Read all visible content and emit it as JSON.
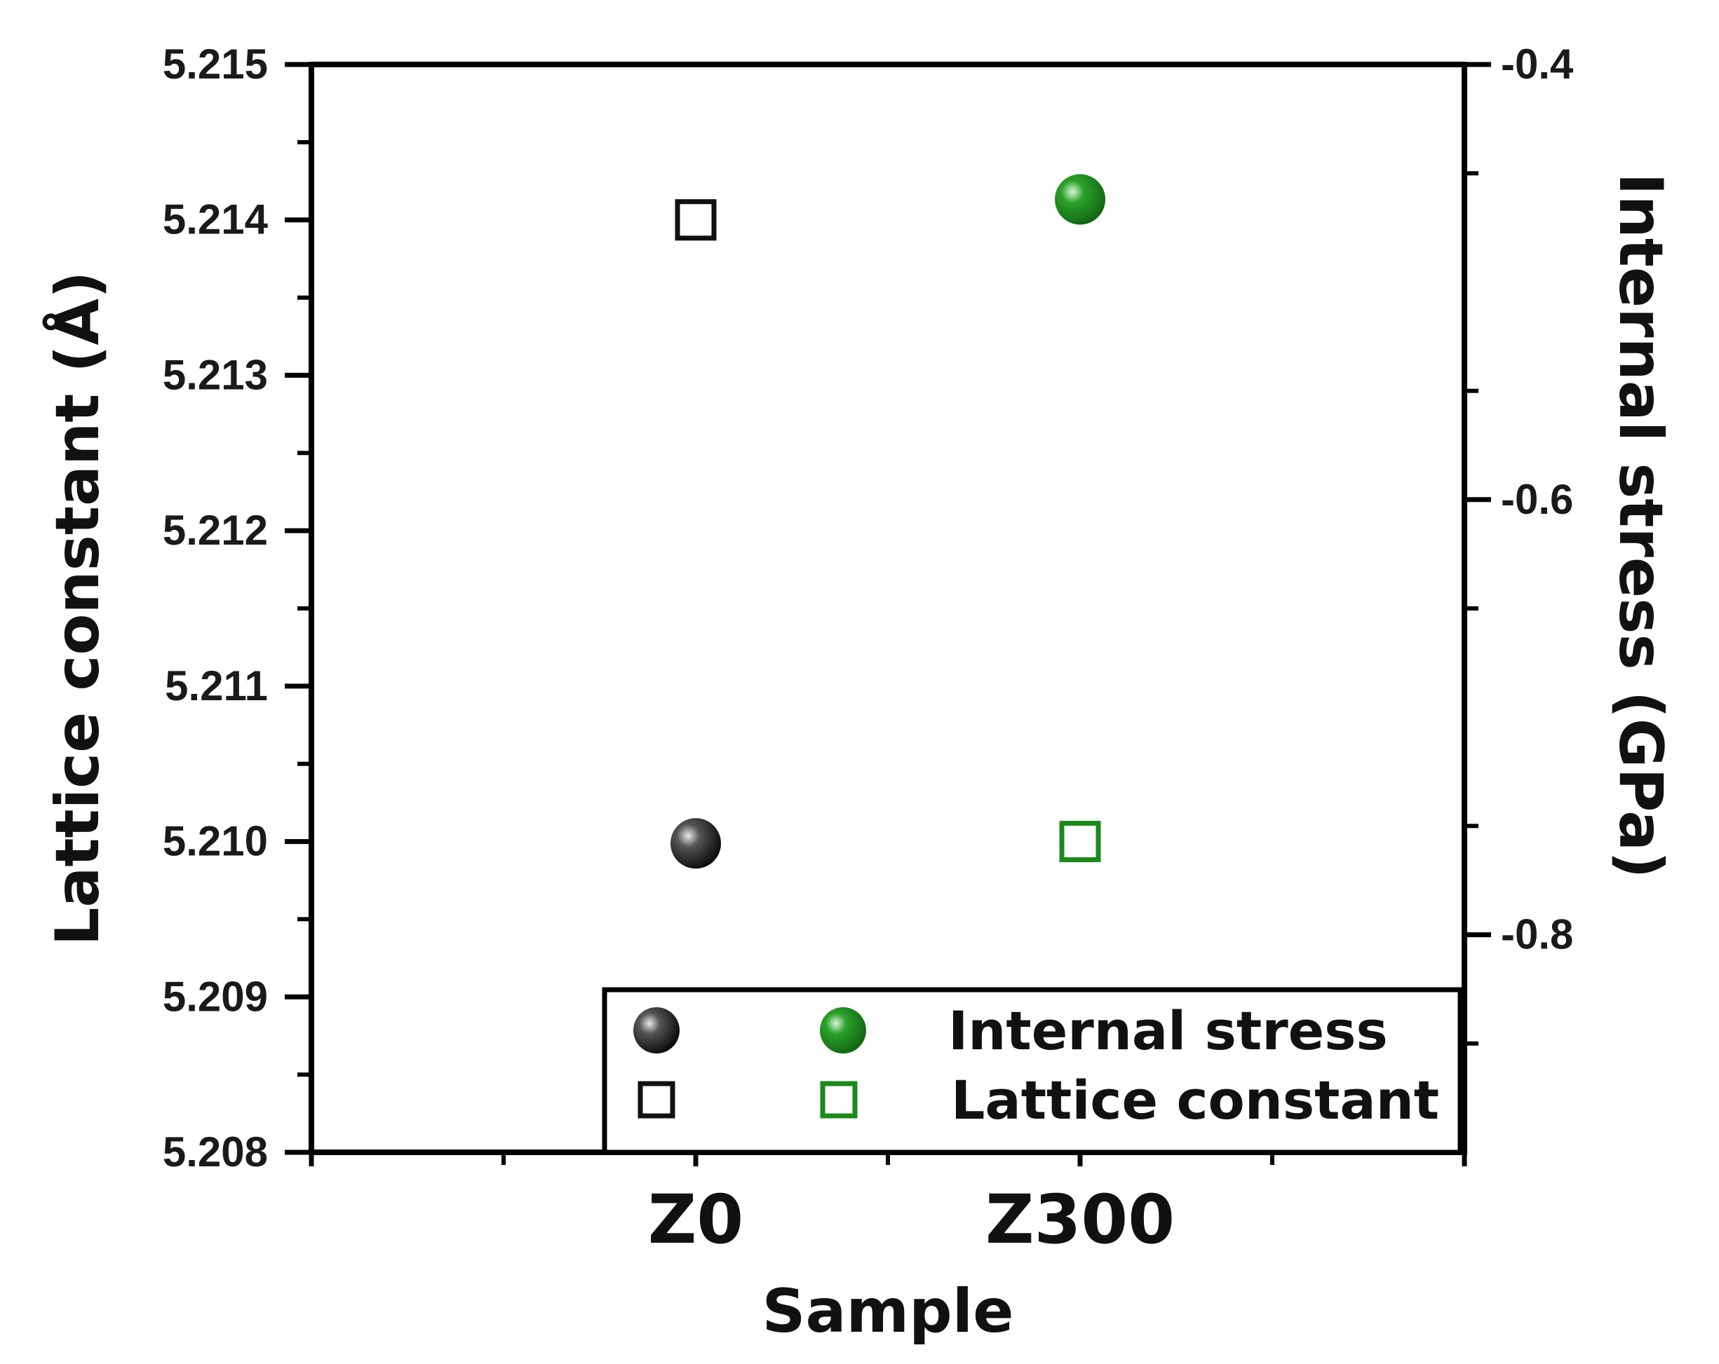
{
  "chart_data": {
    "type": "scatter",
    "categories": [
      "Z0",
      "Z300"
    ],
    "xlabel": "Sample",
    "y_left": {
      "label": "Lattice constant (Å)",
      "ylim": [
        5.208,
        5.215
      ],
      "ticks": [
        "5.208",
        "5.209",
        "5.210",
        "5.211",
        "5.212",
        "5.213",
        "5.214",
        "5.215"
      ]
    },
    "y_right": {
      "label": "Internal stress (GPa)",
      "ylim": [
        -0.9,
        -0.4
      ],
      "ticks": [
        "-0.8",
        "-0.6",
        "-0.4"
      ]
    },
    "series": [
      {
        "name": "Internal stress",
        "axis": "right",
        "marker": "filled-sphere",
        "colors": [
          "#111111",
          "#1a8a1a"
        ],
        "values": [
          -0.758,
          -0.462
        ]
      },
      {
        "name": "Lattice constant",
        "axis": "left",
        "marker": "open-square",
        "colors": [
          "#111111",
          "#1a8a1a"
        ],
        "values": [
          5.214,
          5.21
        ]
      }
    ],
    "legend": {
      "position": "bottom-right",
      "entries": [
        "Internal stress",
        "Lattice constant"
      ]
    },
    "grid": false
  }
}
